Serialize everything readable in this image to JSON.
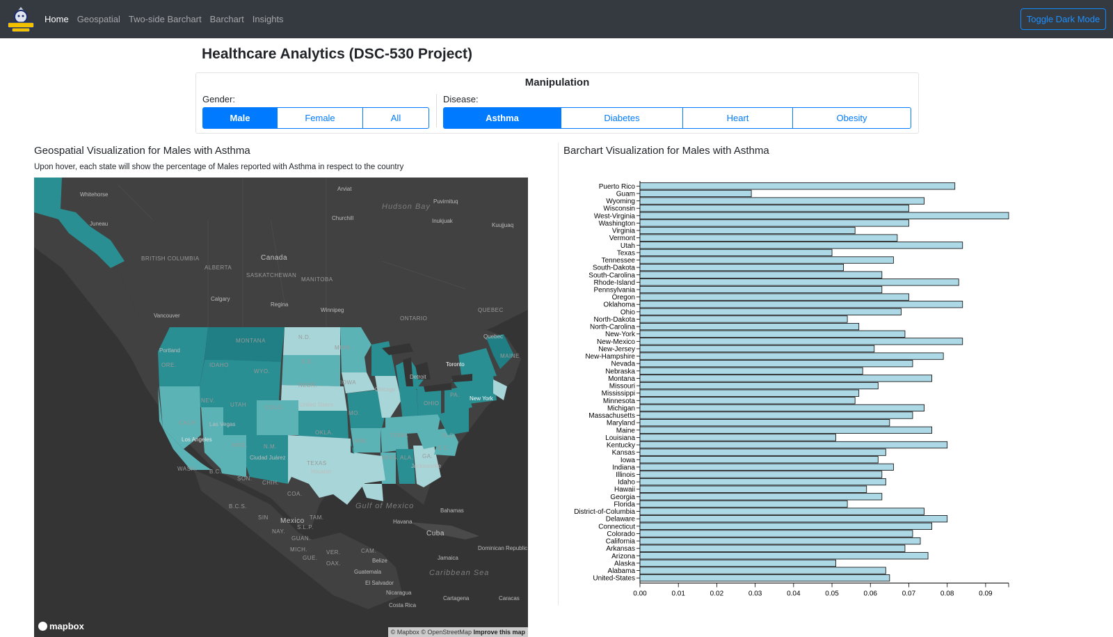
{
  "nav": {
    "logo_icon": "umbc-retriever-logo-icon",
    "links": [
      "Home",
      "Geospatial",
      "Two-side Barchart",
      "Barchart",
      "Insights"
    ],
    "active": "Home",
    "toggle_label": "Toggle Dark Mode"
  },
  "page": {
    "title": "Healthcare Analytics (DSC-530 Project)"
  },
  "manipulation": {
    "title": "Manipulation",
    "gender_label": "Gender:",
    "gender_options": [
      "Male",
      "Female",
      "All"
    ],
    "gender_selected": "Male",
    "disease_label": "Disease:",
    "disease_options": [
      "Asthma",
      "Diabetes",
      "Heart",
      "Obesity"
    ],
    "disease_selected": "Asthma"
  },
  "geo": {
    "title": "Geospatial Visualization for Males with Asthma",
    "description": "Upon hover, each state will show the percentage of Males reported with Asthma in respect to the country",
    "map_labels": {
      "whitehorse": "Whitehorse",
      "arviat": "Arviat",
      "hudson_bay": "Hudson Bay",
      "puvirnituq": "Puvirnituq",
      "churchill": "Churchill",
      "inukjuak": "Inukjuak",
      "kuujjuaq": "Kuujjuaq",
      "juneau": "Juneau",
      "british_columbia": "BRITISH COLUMBIA",
      "alberta": "ALBERTA",
      "canada": "Canada",
      "saskatchewan": "SASKATCHEWAN",
      "manitoba": "MANITOBA",
      "calgary": "Calgary",
      "regina": "Regina",
      "winnipeg": "Winnipeg",
      "vancouver": "Vancouver",
      "ontario": "ONTARIO",
      "quebec_prov": "QUEBEC",
      "quebec": "Quebec",
      "portland": "Portland",
      "toronto": "Toronto",
      "detroit": "Detroit",
      "chicago": "Chicago",
      "new_york": "New York",
      "los_angeles": "Los Angeles",
      "las_vegas": "Las Vegas",
      "ciudad_juarez": "Ciudad Juárez",
      "houston": "Houston",
      "jacksonville": "Jacksonville",
      "son": "SON.",
      "chih": "CHIH.",
      "coa": "COA.",
      "bc": "B.C.",
      "bcs": "B.C.S.",
      "gulf": "Gulf of Mexico",
      "mexico": "Mexico",
      "havana": "Havana",
      "cuba": "Cuba",
      "bahamas": "Bahamas",
      "caribbean": "Caribbean Sea",
      "tam": "TAM.",
      "sin": "SIN",
      "nay": "NAY.",
      "slp": "S.L.P.",
      "guan": "GUAN.",
      "mich": "MICH.",
      "gue": "GUE.",
      "ver": "VER.",
      "oax": "OAX.",
      "cam": "CAM.",
      "belize": "Belize",
      "guatemala": "Guatemala",
      "salvador": "El Salvador",
      "nicaragua": "Nicaragua",
      "costa_rica": "Costa Rica",
      "jamaica": "Jamaica",
      "dominican": "Dominican Republic",
      "cartagena": "Cartagena",
      "caracas": "Caracas",
      "wash": "WASH.",
      "ore": "ORE.",
      "idaho": "IDAHO",
      "montana": "MONTANA",
      "wyo": "WYO.",
      "nd": "N.D.",
      "sd": "S.D.",
      "nebr": "NEBR.",
      "iowa": "IOWA",
      "minn": "MINN.",
      "nev": "NEV.",
      "utah": "UTAH",
      "colo": "COLO.",
      "calif": "CALIF.",
      "ariz": "ARIZ.",
      "nm": "N.M.",
      "texas": "TEXAS",
      "okla": "OKLA.",
      "mo": "MO.",
      "ark": "ARK.",
      "miss": "MISS.",
      "ala": "ALA.",
      "tenn": "TENN.",
      "ga": "GA.",
      "sc": "S.C.",
      "nc": "N.C.",
      "ohio": "OHIO",
      "pa": "PA.",
      "maine": "MAINE",
      "united_states": "United States"
    },
    "mapbox_label": "mapbox",
    "attribution_prefix": "© Mapbox © OpenStreetMap",
    "attribution_link": "Improve this map",
    "colors": {
      "land": "#414141",
      "water": "#343434",
      "light": "#a8d5d8",
      "mid": "#5bb3b5",
      "dark": "#2a8f93",
      "darker": "#1f7f84"
    }
  },
  "bar": {
    "title": "Barchart Visualization for Males with Asthma",
    "bar_color": "#add8e6"
  },
  "chart_data": {
    "type": "bar",
    "orientation": "horizontal",
    "categories": [
      "Puerto Rico",
      "Guam",
      "Wyoming",
      "Wisconsin",
      "West-Virginia",
      "Washington",
      "Virginia",
      "Vermont",
      "Utah",
      "Texas",
      "Tennessee",
      "South-Dakota",
      "South-Carolina",
      "Rhode-Island",
      "Pennsylvania",
      "Oregon",
      "Oklahoma",
      "Ohio",
      "North-Dakota",
      "North-Carolina",
      "New-York",
      "New-Mexico",
      "New-Jersey",
      "New-Hampshire",
      "Nevada",
      "Nebraska",
      "Montana",
      "Missouri",
      "Mississippi",
      "Minnesota",
      "Michigan",
      "Massachusetts",
      "Maryland",
      "Maine",
      "Louisiana",
      "Kentucky",
      "Kansas",
      "Iowa",
      "Indiana",
      "Illinois",
      "Idaho",
      "Hawaii",
      "Georgia",
      "Florida",
      "District-of-Columbia",
      "Delaware",
      "Connecticut",
      "Colorado",
      "California",
      "Arkansas",
      "Arizona",
      "Alaska",
      "Alabama",
      "United-States"
    ],
    "values": [
      0.082,
      0.029,
      0.074,
      0.07,
      0.096,
      0.07,
      0.056,
      0.067,
      0.084,
      0.05,
      0.066,
      0.053,
      0.063,
      0.083,
      0.063,
      0.07,
      0.084,
      0.068,
      0.054,
      0.057,
      0.069,
      0.084,
      0.061,
      0.079,
      0.071,
      0.058,
      0.076,
      0.062,
      0.057,
      0.056,
      0.074,
      0.071,
      0.065,
      0.076,
      0.051,
      0.08,
      0.064,
      0.062,
      0.066,
      0.063,
      0.064,
      0.059,
      0.063,
      0.054,
      0.074,
      0.08,
      0.076,
      0.071,
      0.073,
      0.069,
      0.075,
      0.051,
      0.064,
      0.065
    ],
    "xticks": [
      "0.00",
      "0.01",
      "0.02",
      "0.03",
      "0.04",
      "0.05",
      "0.06",
      "0.07",
      "0.08",
      "0.09"
    ],
    "xlim": [
      0,
      0.096
    ],
    "grid": false
  }
}
